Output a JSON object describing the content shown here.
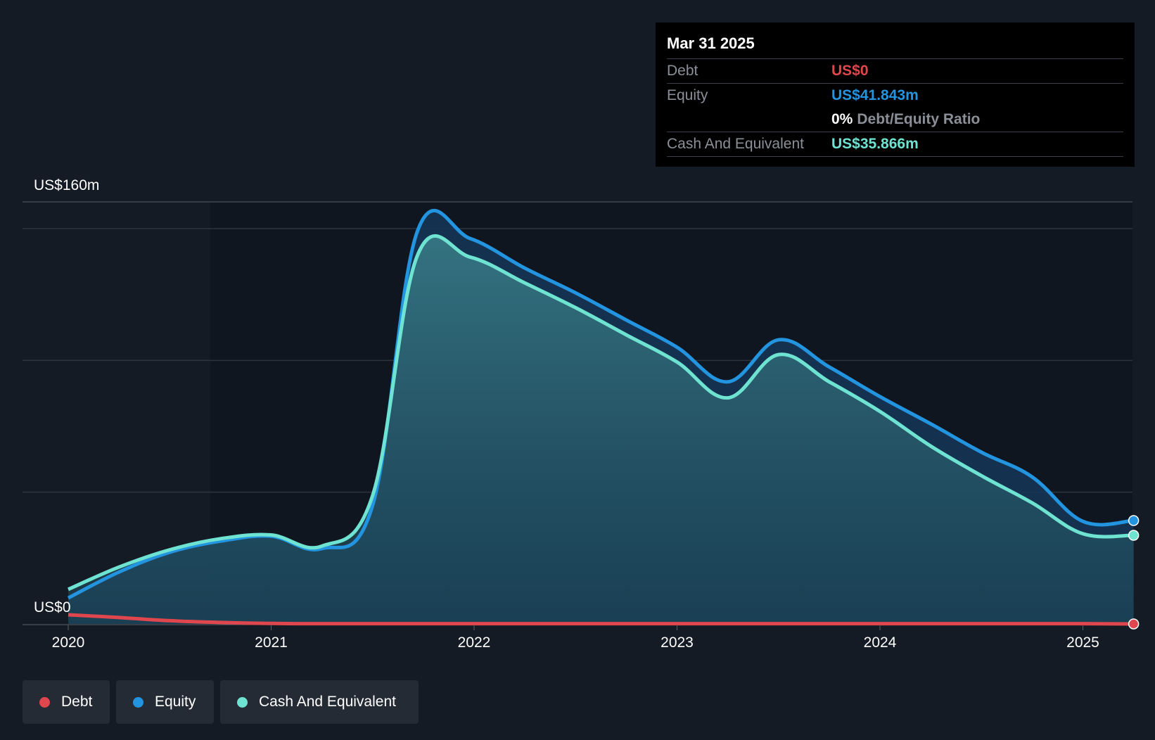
{
  "tooltip": {
    "date": "Mar 31 2025",
    "debt_label": "Debt",
    "debt_value": "US$0",
    "equity_label": "Equity",
    "equity_value": "US$41.843m",
    "ratio_pct": "0%",
    "ratio_label": "Debt/Equity Ratio",
    "cash_label": "Cash And Equivalent",
    "cash_value": "US$35.866m"
  },
  "legend": [
    {
      "label": "Debt",
      "color": "#e0464e"
    },
    {
      "label": "Equity",
      "color": "#2394df"
    },
    {
      "label": "Cash And Equivalent",
      "color": "#6fe3d2"
    }
  ],
  "colors": {
    "debt": "#e0464e",
    "equity": "#2394df",
    "cash": "#6fe3d2",
    "background": "#151b24"
  },
  "chart_data": {
    "type": "area",
    "x_ticks": [
      "2020",
      "2021",
      "2022",
      "2023",
      "2024",
      "2025"
    ],
    "y_axis_labels": {
      "top": "US$160m",
      "bottom": "US$0"
    },
    "ylim": [
      0,
      160
    ],
    "grid": true,
    "highlight_from": 2020.7,
    "series": [
      {
        "name": "Equity",
        "x": [
          2020.0,
          2020.25,
          2020.5,
          2020.75,
          2021.0,
          2021.25,
          2021.5,
          2021.72,
          2021.98,
          2022.25,
          2022.5,
          2022.75,
          2023.0,
          2023.25,
          2023.5,
          2023.75,
          2024.0,
          2024.25,
          2024.5,
          2024.75,
          2025.0,
          2025.25
        ],
        "y": [
          10.5,
          21.0,
          29.0,
          33.5,
          35.5,
          30.5,
          48.0,
          158.8,
          156.0,
          144.0,
          134.0,
          123.0,
          112.0,
          98.0,
          115.0,
          104.0,
          92.0,
          81.0,
          69.5,
          59.5,
          41.5,
          41.843
        ]
      },
      {
        "name": "Cash And Equivalent",
        "x": [
          2020.0,
          2020.25,
          2020.5,
          2020.75,
          2021.0,
          2021.25,
          2021.5,
          2021.72,
          2021.98,
          2022.25,
          2022.5,
          2022.75,
          2023.0,
          2023.25,
          2023.5,
          2023.75,
          2024.0,
          2024.25,
          2024.5,
          2024.75,
          2025.0,
          2025.25
        ],
        "y": [
          14.0,
          23.0,
          30.0,
          34.5,
          36.0,
          31.5,
          52.0,
          149.0,
          148.5,
          138.0,
          128.0,
          117.0,
          106.0,
          91.5,
          109.0,
          98.0,
          86.0,
          72.0,
          60.0,
          49.0,
          36.5,
          35.866
        ]
      },
      {
        "name": "Debt",
        "x": [
          2020.0,
          2020.25,
          2020.5,
          2020.75,
          2021.0,
          2021.25,
          2021.5,
          2021.75,
          2022.0,
          2022.5,
          2023.0,
          2023.5,
          2024.0,
          2024.5,
          2025.0,
          2025.25
        ],
        "y": [
          3.7,
          2.6,
          1.3,
          0.6,
          0.2,
          0.1,
          0.1,
          0.1,
          0.1,
          0.1,
          0.1,
          0.1,
          0.1,
          0.1,
          0.1,
          0.0
        ]
      }
    ]
  }
}
